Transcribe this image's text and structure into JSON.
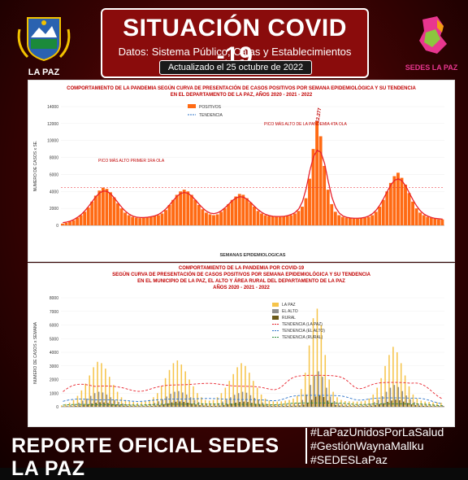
{
  "header": {
    "title": "SITUACIÓN COVID -19",
    "subtitle": "Datos: Sistema Público, Cajas y Establecimientos Privados",
    "updated": "Actualizado el  25  octubre  de 2022"
  },
  "logos": {
    "left_caption": "LA PAZ",
    "right_caption": "SEDES LA PAZ"
  },
  "footer": {
    "report": "REPORTE OFICIAL SEDES LA PAZ",
    "hashtags": [
      "#LaPazUnidosPorLaSalud",
      "#GestiónWaynaMallku",
      "#SEDESLaPaz"
    ]
  },
  "colors": {
    "orange": "#ff6a13",
    "red_line": "#e8202a",
    "blue_dash": "#2f75c9",
    "yellow": "#f6c44a",
    "grey": "#8e8e8e",
    "olive": "#6b5a1a"
  },
  "chart_data": [
    {
      "type": "bar",
      "title": "COMPORTAMIENTO DE LA PANDEMIA SEGÚN CURVA DE PRESENTACIÓN DE CASOS POSITIVOS POR SEMANA EPIDEMIOLÓGICA Y SU TENDENCIA",
      "subtitle": "EN EL DEPARTAMENTO DE LA PAZ, AÑOS 2020 - 2021 - 2022",
      "xlabel": "SEMANAS EPIDEMIOLOGICAS",
      "ylabel": "NUMERO DE CASOS x SE.",
      "ylim": [
        0,
        14000
      ],
      "yticks": [
        0,
        2000,
        4000,
        6000,
        8000,
        10000,
        12000,
        14000
      ],
      "legend": [
        "POSITIVOS",
        "TENDENCIA"
      ],
      "annotations": [
        "PICO MÁS ALTO PRIMER 1RA OLA",
        "PICO MÁS ALTO DE LA PANDEMIA 4TA OLA"
      ],
      "peak_label": "12.277",
      "values": [
        200,
        300,
        450,
        600,
        900,
        1200,
        1600,
        2100,
        2800,
        3500,
        4100,
        4448,
        4300,
        3900,
        3300,
        2600,
        2000,
        1500,
        1200,
        1000,
        900,
        850,
        900,
        950,
        1000,
        1100,
        1200,
        1400,
        1800,
        2400,
        3000,
        3600,
        4000,
        4200,
        4000,
        3600,
        3000,
        2400,
        1900,
        1500,
        1300,
        1200,
        1300,
        1600,
        2000,
        2500,
        3000,
        3400,
        3700,
        3600,
        3200,
        2700,
        2200,
        1700,
        1400,
        1200,
        1100,
        1050,
        1000,
        1000,
        1050,
        1100,
        1200,
        1400,
        1700,
        2200,
        3200,
        5500,
        9000,
        12277,
        10500,
        7000,
        4200,
        2500,
        1600,
        1200,
        1000,
        900,
        850,
        800,
        800,
        850,
        900,
        1000,
        1200,
        1600,
        2200,
        3000,
        4000,
        5000,
        5800,
        6200,
        5600,
        4800,
        3800,
        2800,
        2000,
        1500,
        1200,
        1000,
        900,
        800,
        700,
        700
      ]
    },
    {
      "type": "bar",
      "title": "COMPORTAMIENTO DE LA PANDEMIA POR COVID-19",
      "subtitle": "SEGÚN CURVA DE PRESENTACIÓN DE CASOS POSITIVOS POR SEMANA EPIDEMIOLÓGICA Y SU TENDENCIA",
      "subtitle2": "EN EL  MUNICIPIO DE LA PAZ, EL ALTO Y ÁREA RURAL DEL DEPARTAMENTO DE LA PAZ",
      "subtitle3": "AÑOS 2020 - 2021 - 2022",
      "ylabel": "NUMERO DE CASOS x SEMANA",
      "ylim": [
        0,
        8000
      ],
      "yticks": [
        0,
        1000,
        2000,
        3000,
        4000,
        5000,
        6000,
        7000,
        8000
      ],
      "legend": [
        "LA PAZ",
        "EL ALTO",
        "RURAL",
        "TENDENCIA (LA PAZ)",
        "TENDENCIA (EL ALTO)",
        "TENDENCIA (RURAL)"
      ],
      "series": [
        {
          "name": "LA PAZ",
          "values": [
            100,
            200,
            300,
            500,
            800,
            1200,
            1700,
            2300,
            2900,
            3300,
            3200,
            2800,
            2200,
            1600,
            1100,
            700,
            500,
            400,
            350,
            300,
            350,
            400,
            500,
            700,
            1000,
            1500,
            2100,
            2700,
            3200,
            3400,
            3100,
            2600,
            2000,
            1500,
            1000,
            700,
            500,
            450,
            500,
            700,
            1000,
            1400,
            1900,
            2400,
            2900,
            3200,
            3000,
            2500,
            1900,
            1400,
            900,
            600,
            450,
            400,
            380,
            400,
            450,
            500,
            600,
            800,
            1300,
            2500,
            4500,
            6500,
            7200,
            6000,
            3800,
            2000,
            1100,
            700,
            500,
            420,
            400,
            380,
            380,
            400,
            450,
            600,
            900,
            1400,
            2100,
            3000,
            3800,
            4400,
            4000,
            3200,
            2300,
            1500,
            900,
            600,
            450,
            380,
            350,
            330,
            320,
            300
          ]
        },
        {
          "name": "EL ALTO",
          "values": [
            50,
            80,
            120,
            200,
            300,
            450,
            600,
            800,
            1000,
            1100,
            1050,
            900,
            700,
            500,
            350,
            250,
            180,
            150,
            130,
            120,
            130,
            150,
            200,
            280,
            400,
            550,
            750,
            950,
            1100,
            1150,
            1050,
            900,
            700,
            500,
            350,
            250,
            190,
            170,
            190,
            260,
            380,
            520,
            700,
            880,
            1000,
            1100,
            1030,
            850,
            650,
            480,
            320,
            220,
            170,
            150,
            140,
            150,
            170,
            190,
            230,
            300,
            500,
            900,
            1600,
            2300,
            2600,
            2200,
            1400,
            750,
            420,
            270,
            190,
            160,
            150,
            140,
            140,
            150,
            170,
            230,
            340,
            520,
            780,
            1100,
            1400,
            1600,
            1450,
            1150,
            830,
            550,
            340,
            230,
            170,
            140,
            130,
            125,
            120,
            115
          ]
        },
        {
          "name": "RURAL",
          "values": [
            20,
            30,
            40,
            60,
            90,
            130,
            180,
            240,
            300,
            330,
            320,
            280,
            220,
            160,
            110,
            80,
            60,
            50,
            45,
            40,
            45,
            50,
            60,
            90,
            130,
            180,
            250,
            320,
            370,
            390,
            360,
            300,
            230,
            170,
            120,
            90,
            70,
            60,
            70,
            90,
            130,
            180,
            240,
            300,
            350,
            380,
            350,
            290,
            220,
            160,
            110,
            80,
            60,
            55,
            50,
            55,
            60,
            70,
            80,
            100,
            170,
            300,
            520,
            750,
            850,
            720,
            460,
            250,
            140,
            90,
            65,
            55,
            50,
            48,
            48,
            50,
            58,
            80,
            120,
            180,
            260,
            360,
            460,
            530,
            480,
            380,
            280,
            180,
            120,
            80,
            60,
            50,
            46,
            44,
            42,
            40
          ]
        }
      ]
    }
  ]
}
